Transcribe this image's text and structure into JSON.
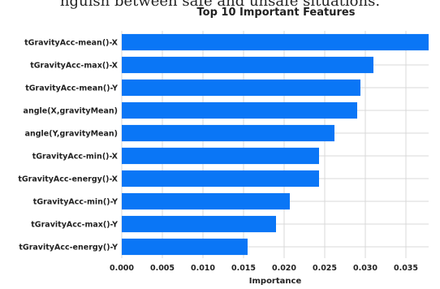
{
  "top_caption": "nguish between safe and unsafe situations.",
  "chart_data": {
    "type": "bar",
    "orientation": "horizontal",
    "title": "Top 10 Important Features",
    "xlabel": "Importance",
    "ylabel": "",
    "categories": [
      "tGravityAcc-mean()-X",
      "tGravityAcc-max()-X",
      "tGravityAcc-mean()-Y",
      "angle(X,gravityMean)",
      "angle(Y,gravityMean)",
      "tGravityAcc-min()-X",
      "tGravityAcc-energy()-X",
      "tGravityAcc-min()-Y",
      "tGravityAcc-max()-Y",
      "tGravityAcc-energy()-Y"
    ],
    "values": [
      0.0378,
      0.031,
      0.0294,
      0.029,
      0.0262,
      0.0243,
      0.0243,
      0.0207,
      0.019,
      0.0155
    ],
    "xticks": [
      "0.000",
      "0.005",
      "0.010",
      "0.015",
      "0.020",
      "0.025",
      "0.030",
      "0.035"
    ],
    "xlim": [
      0,
      0.0378
    ],
    "grid": true,
    "bar_color": "#0a76f6",
    "grid_color": "#d9d9d9"
  }
}
